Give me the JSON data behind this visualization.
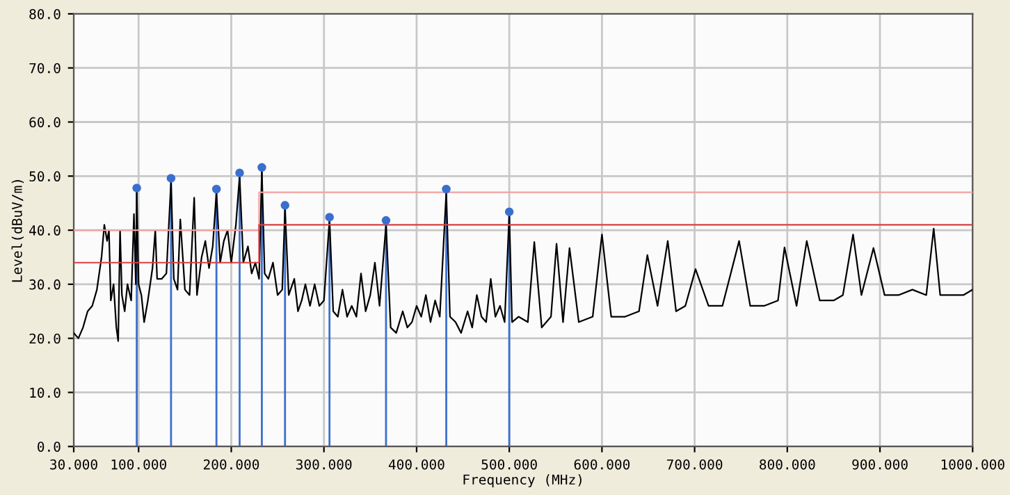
{
  "chart_data": {
    "type": "line",
    "xlabel": "Frequency (MHz)",
    "ylabel": "Level(dBuV/m)",
    "xlim": [
      30,
      1000
    ],
    "ylim": [
      0,
      80
    ],
    "xticks": [
      {
        "value": 30,
        "label": "30.000"
      },
      {
        "value": 100,
        "label": "100.000"
      },
      {
        "value": 200,
        "label": "200.000"
      },
      {
        "value": 300,
        "label": "300.000"
      },
      {
        "value": 400,
        "label": "400.000"
      },
      {
        "value": 500,
        "label": "500.000"
      },
      {
        "value": 600,
        "label": "600.000"
      },
      {
        "value": 700,
        "label": "700.000"
      },
      {
        "value": 800,
        "label": "800.000"
      },
      {
        "value": 900,
        "label": "900.000"
      },
      {
        "value": 1000,
        "label": "1000.000"
      }
    ],
    "yticks": [
      {
        "value": 0,
        "label": "0.0"
      },
      {
        "value": 10,
        "label": "10.0"
      },
      {
        "value": 20,
        "label": "20.0"
      },
      {
        "value": 30,
        "label": "30.0"
      },
      {
        "value": 40,
        "label": "40.0"
      },
      {
        "value": 50,
        "label": "50.0"
      },
      {
        "value": 60,
        "label": "60.0"
      },
      {
        "value": 70,
        "label": "70.0"
      },
      {
        "value": 80,
        "label": "80.0"
      }
    ],
    "grid": true,
    "series": [
      {
        "color": "#000000",
        "x": [
          30,
          35,
          40,
          45,
          50,
          55,
          60,
          63,
          66,
          68,
          70,
          73,
          76,
          78,
          80,
          82,
          85,
          88,
          92,
          95,
          97,
          98,
          100,
          103,
          106,
          110,
          115,
          118,
          120,
          125,
          130,
          135,
          138,
          142,
          145,
          150,
          155,
          160,
          163,
          168,
          172,
          176,
          180,
          184,
          188,
          192,
          196,
          200,
          205,
          209,
          213,
          218,
          222,
          226,
          230,
          233,
          236,
          240,
          245,
          250,
          255,
          258,
          262,
          268,
          272,
          276,
          280,
          285,
          290,
          295,
          300,
          306,
          310,
          315,
          320,
          325,
          330,
          335,
          340,
          345,
          350,
          355,
          360,
          367,
          372,
          378,
          385,
          390,
          395,
          400,
          405,
          410,
          415,
          420,
          425,
          432,
          436,
          442,
          448,
          455,
          460,
          465,
          470,
          475,
          480,
          485,
          490,
          495,
          500,
          503,
          510,
          520,
          527,
          535,
          545,
          551,
          558,
          565,
          575,
          590,
          600,
          610,
          625,
          640,
          649,
          660,
          671,
          680,
          690,
          701,
          715,
          730,
          748,
          760,
          775,
          790,
          797,
          810,
          821,
          835,
          850,
          860,
          871,
          880,
          893,
          905,
          920,
          935,
          950,
          958,
          965,
          980,
          990,
          1000
        ],
        "values": [
          21,
          20,
          22,
          25,
          26,
          29,
          35,
          41,
          38,
          40,
          27,
          30,
          22,
          19.5,
          40,
          28,
          25,
          30,
          27,
          43,
          30,
          47,
          30,
          28,
          23,
          27,
          33,
          40,
          31,
          31,
          32,
          49,
          31,
          29,
          42,
          29,
          28,
          46,
          28,
          35,
          38,
          33,
          37,
          47,
          34,
          38,
          40,
          34,
          41,
          50,
          34,
          37,
          32,
          34,
          31,
          51,
          32,
          31,
          34,
          28,
          29,
          44,
          28,
          31,
          25,
          27,
          30,
          26,
          30,
          26,
          27,
          42,
          25,
          24,
          29,
          24,
          26,
          24,
          32,
          25,
          28,
          34,
          26,
          41,
          22,
          21,
          25,
          22,
          23,
          26,
          24,
          28,
          23,
          27,
          24,
          47,
          24,
          23,
          21,
          25,
          22,
          28,
          24,
          23,
          31,
          24,
          26,
          23,
          43,
          23,
          24,
          23,
          37.8,
          22,
          24,
          37.5,
          23,
          36.7,
          23,
          24,
          39.2,
          24,
          24,
          25,
          35.4,
          26,
          38,
          25,
          26,
          32.8,
          26,
          26,
          38,
          26,
          26,
          27,
          36.8,
          26,
          38,
          27,
          27,
          28,
          39.2,
          28,
          36.7,
          28,
          28,
          29,
          28,
          40.3,
          28,
          28,
          28,
          29
        ]
      },
      {
        "type": "line",
        "color": "#f4a0a0",
        "x": [
          30,
          230,
          230,
          1000
        ],
        "values": [
          40,
          40,
          47,
          47
        ]
      },
      {
        "type": "line",
        "color": "#d84040",
        "x": [
          30,
          230,
          230,
          1000
        ],
        "values": [
          34,
          34,
          41,
          41
        ]
      },
      {
        "type": "lollipop",
        "color": "#3a6fd0",
        "marker": "circle",
        "x": [
          98,
          135,
          184,
          209,
          233,
          258,
          306,
          367,
          432,
          500
        ],
        "values": [
          47.8,
          49.6,
          47.6,
          50.6,
          51.6,
          44.6,
          42.4,
          41.8,
          47.6,
          43.4
        ]
      }
    ]
  }
}
